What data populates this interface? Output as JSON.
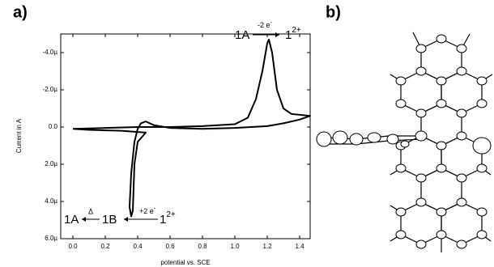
{
  "chart_data": {
    "type": "line",
    "panel_label": "a)",
    "xlabel": "potential vs. SCE",
    "ylabel": "Current in A",
    "xlim": [
      -0.075,
      1.465
    ],
    "ylim": [
      -5e-06,
      6e-06
    ],
    "y_inverted": true,
    "xticks": [
      {
        "value": 0,
        "label": "0.0"
      },
      0.2,
      0.4,
      0.6,
      0.8,
      {
        "value": 1,
        "label": "1.0"
      },
      1.2,
      1.4
    ],
    "yticks": [
      {
        "value": -4e-06,
        "label": "-4.0µ"
      },
      {
        "value": -2e-06,
        "label": "-2.0µ"
      },
      {
        "value": 0,
        "label": "0.0"
      },
      {
        "value": 2e-06,
        "label": "2.0µ"
      },
      {
        "value": 4e-06,
        "label": "4.0µ"
      },
      {
        "value": 6e-06,
        "label": "6.0µ"
      }
    ],
    "series": [
      {
        "color": "#000000",
        "x": [
          0.0,
          0.2,
          0.4,
          0.6,
          0.8,
          1.0,
          1.08,
          1.13,
          1.17,
          1.2,
          1.21,
          1.23,
          1.26,
          1.3,
          1.35,
          1.465,
          1.4,
          1.3,
          1.2,
          1.0,
          0.8,
          0.6,
          0.5,
          0.45,
          0.42,
          0.4,
          0.38,
          0.36,
          0.35,
          0.36,
          0.37,
          0.38,
          0.4,
          0.45,
          0.3,
          0.1,
          0.0
        ],
        "values": [
          1e-07,
          5e-08,
          0,
          0,
          -5e-08,
          -1.5e-07,
          -5e-07,
          -1.5e-06,
          -3e-06,
          -4.5e-06,
          -4.7e-06,
          -4e-06,
          -2e-06,
          -1e-06,
          -7e-07,
          -6e-07,
          -4e-07,
          -2e-07,
          -5e-08,
          5e-08,
          1e-07,
          5e-08,
          -1e-07,
          -3e-07,
          -2e-07,
          1e-07,
          8e-07,
          2.5e-06,
          4.3e-06,
          4.8e-06,
          4.5e-06,
          2e-06,
          8e-07,
          3e-07,
          2e-07,
          1.5e-07,
          1e-07
        ]
      }
    ],
    "annotations": [
      {
        "text": "1A"
      },
      {
        "text": "-2 e",
        "sup": "-"
      },
      {
        "text": "1",
        "sup": "2+"
      },
      {
        "text": "1A"
      },
      {
        "text": "Δ"
      },
      {
        "text": "1B"
      },
      {
        "text": "+2 e",
        "sup": "-"
      },
      {
        "text": "1",
        "sup": "2+"
      }
    ]
  },
  "panel_b_label": "b)"
}
